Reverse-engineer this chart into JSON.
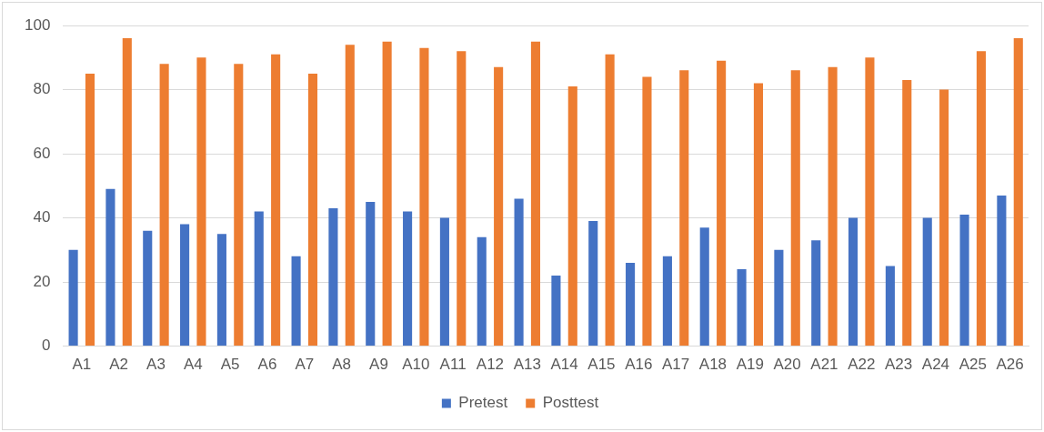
{
  "chart_data": {
    "type": "bar",
    "categories": [
      "A1",
      "A2",
      "A3",
      "A4",
      "A5",
      "A6",
      "A7",
      "A8",
      "A9",
      "A10",
      "A11",
      "A12",
      "A13",
      "A14",
      "A15",
      "A16",
      "A17",
      "A18",
      "A19",
      "A20",
      "A21",
      "A22",
      "A23",
      "A24",
      "A25",
      "A26"
    ],
    "series": [
      {
        "name": "Pretest",
        "color": "#4472c4",
        "values": [
          30,
          49,
          36,
          38,
          35,
          42,
          28,
          43,
          45,
          42,
          40,
          34,
          46,
          22,
          39,
          26,
          28,
          37,
          24,
          30,
          33,
          40,
          25,
          40,
          41,
          47
        ]
      },
      {
        "name": "Posttest",
        "color": "#ed7d31",
        "values": [
          85,
          96,
          88,
          90,
          88,
          91,
          85,
          94,
          95,
          93,
          92,
          87,
          95,
          81,
          91,
          84,
          86,
          89,
          82,
          86,
          87,
          90,
          83,
          80,
          92,
          96
        ]
      }
    ],
    "ylim": [
      0,
      100
    ],
    "yticks": [
      0,
      20,
      40,
      60,
      80,
      100
    ],
    "grid": "y",
    "legend": "bottom"
  }
}
